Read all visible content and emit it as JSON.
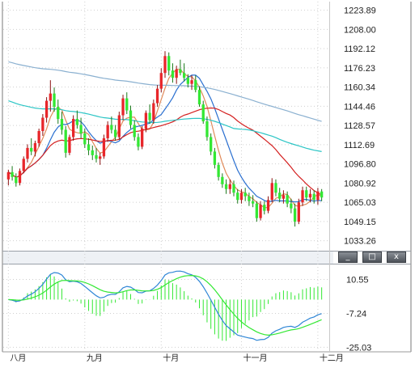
{
  "toolbar": {
    "minimize_label": "_",
    "maximize_label": "□",
    "close_label": "x"
  },
  "chart_data": [
    {
      "type": "candlestick",
      "y_ticks": [
        "1223.89",
        "1208.00",
        "1192.12",
        "1176.23",
        "1160.34",
        "1144.46",
        "1128.57",
        "1112.69",
        "1096.80",
        "1080.92",
        "1065.03",
        "1049.15",
        "1033.26"
      ],
      "ylim": [
        1025,
        1231
      ],
      "x_tick_labels": [
        "八月",
        "九月",
        "十月",
        "十一月",
        "十二月"
      ],
      "x_tick_index": [
        0,
        20,
        40,
        61,
        81
      ],
      "up_color": "#e8262a",
      "down_color": "#33e833",
      "candles": [
        [
          1084,
          1092,
          1079,
          1090
        ],
        [
          1090,
          1095,
          1083,
          1086
        ],
        [
          1086,
          1089,
          1078,
          1081
        ],
        [
          1081,
          1093,
          1079,
          1091
        ],
        [
          1091,
          1103,
          1089,
          1101
        ],
        [
          1101,
          1113,
          1098,
          1110
        ],
        [
          1110,
          1118,
          1104,
          1107
        ],
        [
          1107,
          1116,
          1103,
          1114
        ],
        [
          1114,
          1126,
          1111,
          1124
        ],
        [
          1124,
          1138,
          1120,
          1135
        ],
        [
          1135,
          1152,
          1131,
          1149
        ],
        [
          1149,
          1166,
          1140,
          1155
        ],
        [
          1155,
          1160,
          1140,
          1144
        ],
        [
          1144,
          1150,
          1130,
          1134
        ],
        [
          1134,
          1140,
          1121,
          1125
        ],
        [
          1125,
          1128,
          1102,
          1106
        ],
        [
          1106,
          1121,
          1104,
          1119
        ],
        [
          1119,
          1137,
          1116,
          1134
        ],
        [
          1134,
          1141,
          1126,
          1129
        ],
        [
          1129,
          1135,
          1118,
          1122
        ],
        [
          1122,
          1126,
          1110,
          1113
        ],
        [
          1113,
          1118,
          1104,
          1108
        ],
        [
          1108,
          1112,
          1100,
          1104
        ],
        [
          1104,
          1110,
          1098,
          1101
        ],
        [
          1101,
          1106,
          1096,
          1103
        ],
        [
          1103,
          1121,
          1101,
          1118
        ],
        [
          1118,
          1132,
          1115,
          1129
        ],
        [
          1129,
          1136,
          1122,
          1125
        ],
        [
          1125,
          1129,
          1116,
          1119
        ],
        [
          1119,
          1140,
          1117,
          1137
        ],
        [
          1137,
          1154,
          1133,
          1151
        ],
        [
          1151,
          1156,
          1138,
          1141
        ],
        [
          1141,
          1145,
          1126,
          1129
        ],
        [
          1129,
          1133,
          1116,
          1119
        ],
        [
          1119,
          1122,
          1108,
          1111
        ],
        [
          1111,
          1128,
          1109,
          1126
        ],
        [
          1126,
          1141,
          1123,
          1139
        ],
        [
          1139,
          1146,
          1130,
          1133
        ],
        [
          1133,
          1150,
          1130,
          1147
        ],
        [
          1147,
          1162,
          1144,
          1159
        ],
        [
          1159,
          1176,
          1156,
          1172
        ],
        [
          1172,
          1190,
          1168,
          1186
        ],
        [
          1186,
          1189,
          1170,
          1174
        ],
        [
          1174,
          1180,
          1164,
          1168
        ],
        [
          1168,
          1178,
          1163,
          1175
        ],
        [
          1175,
          1183,
          1170,
          1172
        ],
        [
          1172,
          1180,
          1165,
          1168
        ],
        [
          1168,
          1171,
          1160,
          1163
        ],
        [
          1163,
          1170,
          1158,
          1166
        ],
        [
          1166,
          1170,
          1156,
          1158
        ],
        [
          1158,
          1161,
          1144,
          1146
        ],
        [
          1146,
          1149,
          1130,
          1132
        ],
        [
          1132,
          1136,
          1116,
          1119
        ],
        [
          1119,
          1122,
          1104,
          1107
        ],
        [
          1107,
          1110,
          1093,
          1096
        ],
        [
          1096,
          1098,
          1083,
          1086
        ],
        [
          1086,
          1089,
          1077,
          1080
        ],
        [
          1080,
          1084,
          1072,
          1076
        ],
        [
          1076,
          1084,
          1072,
          1080
        ],
        [
          1080,
          1083,
          1070,
          1073
        ],
        [
          1073,
          1076,
          1064,
          1067
        ],
        [
          1067,
          1076,
          1064,
          1073
        ],
        [
          1073,
          1077,
          1066,
          1070
        ],
        [
          1070,
          1073,
          1062,
          1066
        ],
        [
          1066,
          1071,
          1061,
          1064
        ],
        [
          1064,
          1066,
          1049,
          1052
        ],
        [
          1052,
          1066,
          1050,
          1063
        ],
        [
          1063,
          1066,
          1055,
          1058
        ],
        [
          1058,
          1070,
          1056,
          1067
        ],
        [
          1067,
          1085,
          1065,
          1081
        ],
        [
          1081,
          1084,
          1070,
          1073
        ],
        [
          1073,
          1077,
          1065,
          1068
        ],
        [
          1068,
          1075,
          1064,
          1071
        ],
        [
          1071,
          1074,
          1061,
          1064
        ],
        [
          1064,
          1068,
          1056,
          1060
        ],
        [
          1060,
          1064,
          1045,
          1049
        ],
        [
          1049,
          1068,
          1047,
          1065
        ],
        [
          1065,
          1078,
          1062,
          1075
        ],
        [
          1075,
          1078,
          1066,
          1069
        ],
        [
          1069,
          1076,
          1065,
          1072
        ],
        [
          1072,
          1075,
          1064,
          1067
        ],
        [
          1067,
          1077,
          1063,
          1074
        ],
        [
          1074,
          1076,
          1066,
          1069
        ]
      ],
      "ma": [
        {
          "color": "#e08a5a",
          "period": 5
        },
        {
          "color": "#2a6fd0",
          "period": 10
        },
        {
          "color": "#d42020",
          "period": 30
        },
        {
          "color": "#2bc5c5",
          "period": 60
        },
        {
          "color": "#8ab0d0",
          "period": 120
        }
      ]
    },
    {
      "type": "macd",
      "y_ticks": [
        "10.55",
        "-7.24",
        "-25.03"
      ],
      "ylim": [
        -27,
        18
      ],
      "dif_color": "#2f86d6",
      "dea_color": "#33e833",
      "hist_color": "#33e833"
    }
  ]
}
